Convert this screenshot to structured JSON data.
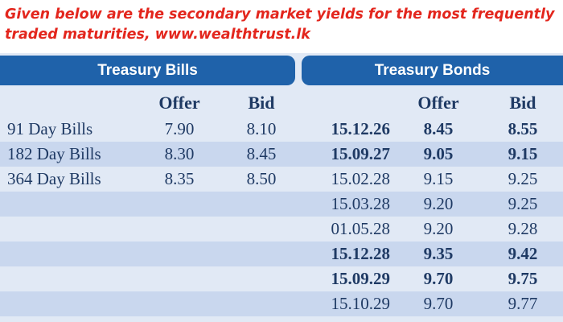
{
  "caption": {
    "line1": "Given below are the secondary market yields for the most frequently",
    "line2": "traded maturities, www.wealthtrust.lk"
  },
  "colors": {
    "caption": "#e3261d",
    "header_bg": "#1f62aa",
    "row_light": "#e1e9f5",
    "row_dark": "#c9d7ee",
    "text": "#1f3a64"
  },
  "bills": {
    "title": "Treasury Bills",
    "col_offer": "Offer",
    "col_bid": "Bid",
    "rows": [
      {
        "name": "91 Day Bills",
        "offer": "7.90",
        "bid": "8.10"
      },
      {
        "name": "182 Day Bills",
        "offer": "8.30",
        "bid": "8.45"
      },
      {
        "name": "364 Day Bills",
        "offer": "8.35",
        "bid": "8.50"
      }
    ]
  },
  "bonds": {
    "title": "Treasury Bonds",
    "col_offer": "Offer",
    "col_bid": "Bid",
    "rows": [
      {
        "maturity": "15.12.26",
        "offer": "8.45",
        "bid": "8.55",
        "bold": true
      },
      {
        "maturity": "15.09.27",
        "offer": "9.05",
        "bid": "9.15",
        "bold": true
      },
      {
        "maturity": "15.02.28",
        "offer": "9.15",
        "bid": "9.25",
        "bold": false
      },
      {
        "maturity": "15.03.28",
        "offer": "9.20",
        "bid": "9.25",
        "bold": false
      },
      {
        "maturity": "01.05.28",
        "offer": "9.20",
        "bid": "9.28",
        "bold": false
      },
      {
        "maturity": "15.12.28",
        "offer": "9.35",
        "bid": "9.42",
        "bold": true
      },
      {
        "maturity": "15.09.29",
        "offer": "9.70",
        "bid": "9.75",
        "bold": true
      },
      {
        "maturity": "15.10.29",
        "offer": "9.70",
        "bid": "9.77",
        "bold": false
      }
    ]
  }
}
